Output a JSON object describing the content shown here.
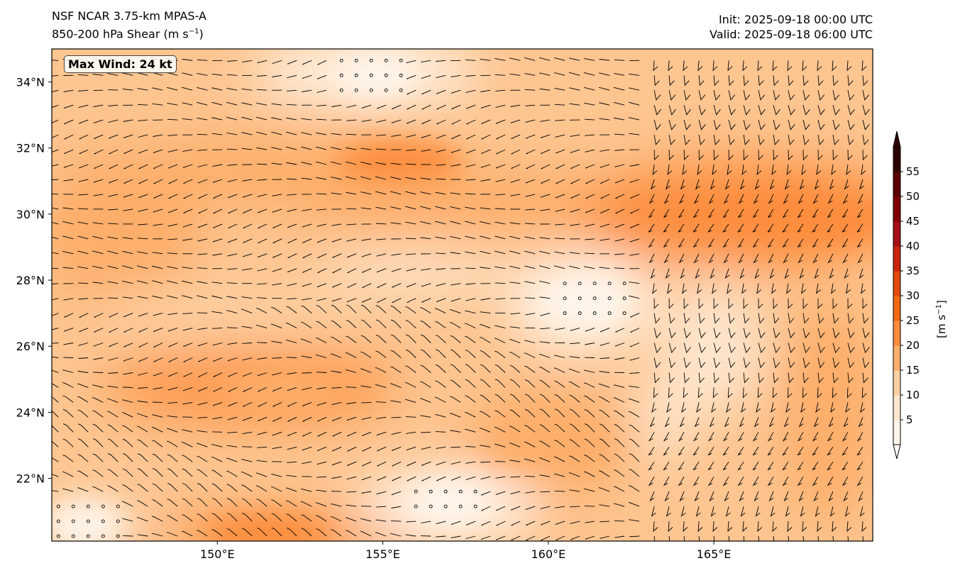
{
  "header": {
    "model": "NSF NCAR 3.75-km MPAS-A",
    "field_main": "850-200 hPa Shear (m s",
    "field_exp": "−1",
    "field_close": ")",
    "init": "Init: 2025-09-18 00:00 UTC",
    "valid": "Valid: 2025-09-18 06:00 UTC"
  },
  "annotation": {
    "max_wind": "Max Wind: 24 kt"
  },
  "map": {
    "lon_range": [
      145.0,
      169.8
    ],
    "lat_range": [
      20.1,
      35.0
    ],
    "lon_ticks": [
      150,
      155,
      160,
      165
    ],
    "lon_tick_labels": [
      "150°E",
      "155°E",
      "160°E",
      "165°E"
    ],
    "lat_ticks": [
      22,
      24,
      26,
      28,
      30,
      32,
      34
    ],
    "lat_tick_labels": [
      "22°N",
      "24°N",
      "26°N",
      "28°N",
      "30°N",
      "32°N",
      "34°N"
    ],
    "shear_maxima": [
      {
        "lon": 168.3,
        "lat": 29.8,
        "value": 24
      },
      {
        "lon": 155.5,
        "lat": 31.6,
        "value": 20
      },
      {
        "lon": 152.0,
        "lat": 24.6,
        "value": 19
      },
      {
        "lon": 160.0,
        "lat": 23.0,
        "value": 16
      },
      {
        "lon": 151.5,
        "lat": 20.3,
        "value": 20
      }
    ],
    "calm_areas": [
      {
        "lon": 161.2,
        "lat": 27.4
      },
      {
        "lon": 157.0,
        "lat": 21.3
      },
      {
        "lon": 154.8,
        "lat": 34.2
      },
      {
        "lon": 146.0,
        "lat": 20.6
      }
    ]
  },
  "colorbar": {
    "ticks": [
      5,
      10,
      15,
      20,
      25,
      30,
      35,
      40,
      45,
      50,
      55
    ],
    "tick_labels": [
      "5",
      "10",
      "15",
      "20",
      "25",
      "30",
      "35",
      "40",
      "45",
      "50",
      "55"
    ],
    "unit_main": "[m s",
    "unit_exp": "−1",
    "unit_close": "]",
    "colors": [
      "#fff5eb",
      "#fee6ce",
      "#fdd0a2",
      "#fdae6b",
      "#fd8d3c",
      "#f16913",
      "#e04a0c",
      "#c8240f",
      "#a50f15",
      "#7f0000",
      "#5a0000",
      "#2d0000"
    ]
  },
  "colors": {
    "land_calm": "#fff5eb",
    "frame": "#000000",
    "barb": "#000000"
  }
}
